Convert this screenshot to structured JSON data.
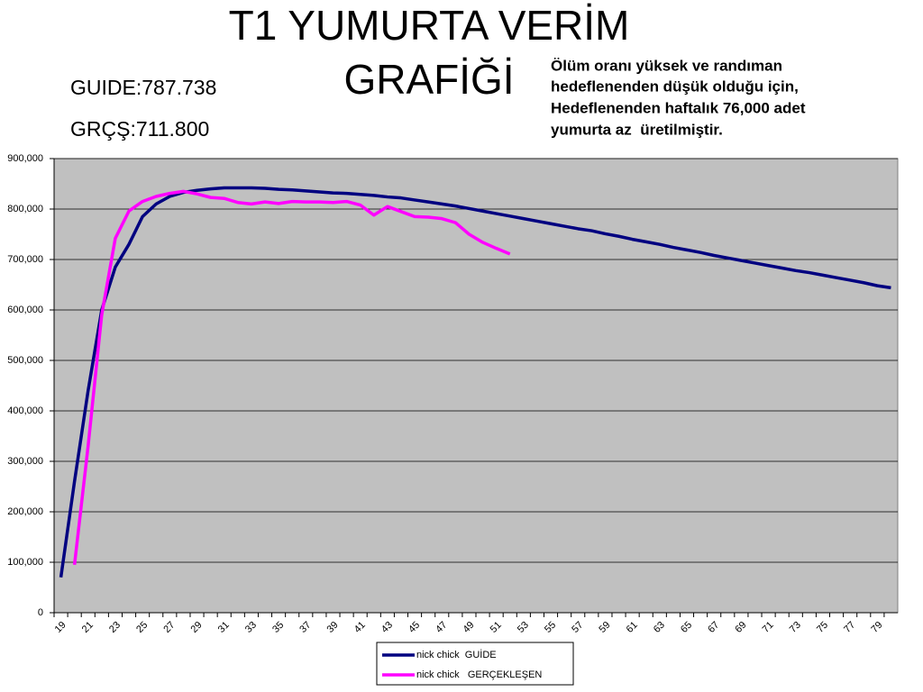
{
  "chart_data": {
    "type": "line",
    "title_lines": [
      "T1 YUMURTA VERİM",
      "GRAFİĞİ"
    ],
    "annotations": [
      "GUIDE:787.738",
      "GRÇŞ:711.800"
    ],
    "note_lines": [
      "Ölüm oranı yüksek ve randıman",
      "hedeflenenden düşük olduğu için,",
      "Hedeflenenden haftalık 76,000 adet",
      "yumurta az  üretilmiştir."
    ],
    "categories": [
      "19",
      null,
      "21",
      null,
      "23",
      null,
      "25",
      null,
      "27",
      null,
      "29",
      null,
      "31",
      null,
      "33",
      null,
      "35",
      null,
      "37",
      null,
      "39",
      null,
      "41",
      null,
      "43",
      null,
      "45",
      null,
      "47",
      null,
      "49",
      null,
      "51",
      null,
      "53",
      null,
      "55",
      null,
      "57",
      null,
      "59",
      null,
      "61",
      null,
      "63",
      null,
      "65",
      null,
      "67",
      null,
      "69",
      null,
      "71",
      null,
      "73",
      null,
      "75",
      null,
      "77",
      null,
      "79",
      null
    ],
    "series": [
      {
        "name": "nick chick  GUİDE",
        "color": "#000080",
        "values": [
          70000,
          260000,
          440000,
          600000,
          685000,
          730000,
          785000,
          810000,
          825000,
          833000,
          837000,
          840000,
          842000,
          842000,
          842000,
          841000,
          839000,
          838000,
          836000,
          834000,
          832000,
          831000,
          829000,
          827000,
          824000,
          822000,
          818000,
          814000,
          810000,
          806000,
          801000,
          796000,
          791000,
          786000,
          781000,
          776000,
          771000,
          766000,
          761000,
          757000,
          751000,
          746000,
          740000,
          735000,
          730000,
          724000,
          719000,
          714000,
          708000,
          703000,
          698000,
          693000,
          688000,
          683000,
          678000,
          674000,
          669000,
          664000,
          659000,
          654000,
          648000,
          644000
        ]
      },
      {
        "name": "nick chick   GERÇEKLEŞEN",
        "color": "#ff00ff",
        "values": [
          null,
          95000,
          330000,
          590000,
          742000,
          796000,
          815000,
          825000,
          831000,
          835000,
          830000,
          823000,
          821000,
          813000,
          810000,
          814000,
          811000,
          815000,
          814000,
          814000,
          813000,
          815000,
          808000,
          788000,
          805000,
          795000,
          785000,
          784000,
          781000,
          773000,
          750000,
          734000,
          722000,
          711000,
          null,
          null,
          null,
          null,
          null,
          null,
          null,
          null,
          null,
          null,
          null,
          null,
          null,
          null,
          null,
          null,
          null,
          null,
          null,
          null,
          null,
          null,
          null,
          null,
          null,
          null,
          null,
          null
        ]
      }
    ],
    "ylim": [
      0,
      900000
    ],
    "yticks": [
      0,
      {
        "value": 100000,
        "label": "100,000"
      },
      {
        "value": 200000,
        "label": "200,000"
      },
      {
        "value": 300000,
        "label": "300,000"
      },
      {
        "value": 400000,
        "label": "400,000"
      },
      {
        "value": 500000,
        "label": "500,000"
      },
      {
        "value": 600000,
        "label": "600,000"
      },
      {
        "value": 700000,
        "label": "700,000"
      },
      {
        "value": 800000,
        "label": "800,000"
      },
      {
        "value": 900000,
        "label": "900,000"
      }
    ],
    "grid": true,
    "plot_background": "#c0c0c0"
  }
}
